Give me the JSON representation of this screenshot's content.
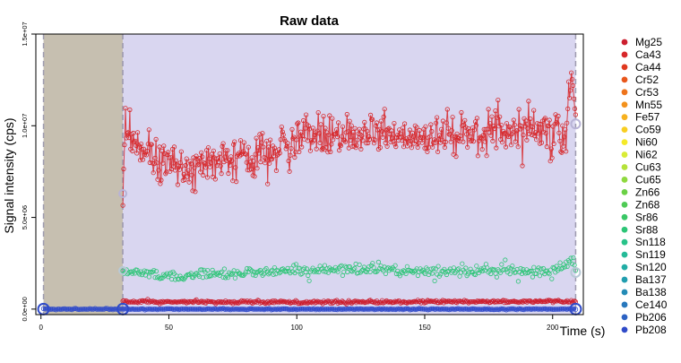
{
  "chart_data": {
    "type": "scatter",
    "title": "Raw data",
    "xlabel": "Time (s)",
    "ylabel": "Signal intensity (cps)",
    "xlim": [
      -2,
      212
    ],
    "ylim": [
      -300000,
      15000000
    ],
    "x_ticks": [
      {
        "value": 0,
        "label": "0"
      },
      {
        "value": 50,
        "label": "50"
      },
      {
        "value": 100,
        "label": "100"
      },
      {
        "value": 150,
        "label": "150"
      },
      {
        "value": 200,
        "label": "200"
      }
    ],
    "y_ticks": [
      {
        "value": 0,
        "label": "0.0e+00"
      },
      {
        "value": 5000000,
        "label": "5.0e+06"
      },
      {
        "value": 10000000,
        "label": "1.0e+07"
      },
      {
        "value": 15000000,
        "label": "1.5e+07"
      }
    ],
    "regions": [
      {
        "kind": "blank",
        "from": 1,
        "to": 32,
        "color": "#c6bfb0"
      },
      {
        "kind": "sample",
        "from": 32,
        "to": 209,
        "color": "#d9d6f0"
      }
    ],
    "legend_position": "right",
    "legend": [
      {
        "name": "Mg25",
        "color": "#cc1f2f"
      },
      {
        "name": "Ca43",
        "color": "#d7272a"
      },
      {
        "name": "Ca44",
        "color": "#e0391f"
      },
      {
        "name": "Cr52",
        "color": "#e8571c"
      },
      {
        "name": "Cr53",
        "color": "#ee741c"
      },
      {
        "name": "Mn55",
        "color": "#f3921d"
      },
      {
        "name": "Fe57",
        "color": "#f7b11f"
      },
      {
        "name": "Co59",
        "color": "#f8ce22"
      },
      {
        "name": "Ni60",
        "color": "#f5ea28"
      },
      {
        "name": "Ni62",
        "color": "#d9ec36"
      },
      {
        "name": "Cu63",
        "color": "#b5e23a"
      },
      {
        "name": "Cu65",
        "color": "#8fd93f"
      },
      {
        "name": "Zn66",
        "color": "#6bd146"
      },
      {
        "name": "Zn68",
        "color": "#4fcb56"
      },
      {
        "name": "Sr86",
        "color": "#3ac766"
      },
      {
        "name": "Sr88",
        "color": "#2dc577"
      },
      {
        "name": "Sn118",
        "color": "#28c389"
      },
      {
        "name": "Sn119",
        "color": "#24bb98"
      },
      {
        "name": "Sn120",
        "color": "#21ada5"
      },
      {
        "name": "Ba137",
        "color": "#219eaf"
      },
      {
        "name": "Ba138",
        "color": "#248bb6"
      },
      {
        "name": "Ce140",
        "color": "#2878bd"
      },
      {
        "name": "Pb206",
        "color": "#2c62c3"
      },
      {
        "name": "Pb208",
        "color": "#304bc9"
      }
    ],
    "series": [
      {
        "name": "Ca43",
        "color": "#d7272a",
        "style": "line+points",
        "x_start": 32,
        "x_end": 209,
        "n_points": 520,
        "baseline_before": 0,
        "knots": [
          {
            "x": 32,
            "y": 6300000
          },
          {
            "x": 33,
            "y": 9800000
          },
          {
            "x": 36,
            "y": 9100000
          },
          {
            "x": 40,
            "y": 8300000
          },
          {
            "x": 50,
            "y": 7900000
          },
          {
            "x": 60,
            "y": 7800000
          },
          {
            "x": 70,
            "y": 7900000
          },
          {
            "x": 80,
            "y": 8100000
          },
          {
            "x": 90,
            "y": 8400000
          },
          {
            "x": 100,
            "y": 9200000
          },
          {
            "x": 110,
            "y": 9400000
          },
          {
            "x": 120,
            "y": 9500000
          },
          {
            "x": 130,
            "y": 9600000
          },
          {
            "x": 140,
            "y": 9500000
          },
          {
            "x": 150,
            "y": 9400000
          },
          {
            "x": 160,
            "y": 9700000
          },
          {
            "x": 170,
            "y": 9600000
          },
          {
            "x": 180,
            "y": 9800000
          },
          {
            "x": 190,
            "y": 9900000
          },
          {
            "x": 200,
            "y": 9800000
          },
          {
            "x": 205,
            "y": 9500000
          },
          {
            "x": 208,
            "y": 12800000
          },
          {
            "x": 209,
            "y": 10100000
          }
        ],
        "spread": 600000
      },
      {
        "name": "Sr88",
        "color": "#2dc577",
        "style": "points",
        "x_start": 32,
        "x_end": 209,
        "n_points": 380,
        "baseline_before": 0,
        "knots": [
          {
            "x": 32,
            "y": 2100000
          },
          {
            "x": 40,
            "y": 1900000
          },
          {
            "x": 50,
            "y": 1800000
          },
          {
            "x": 70,
            "y": 1900000
          },
          {
            "x": 100,
            "y": 2100000
          },
          {
            "x": 120,
            "y": 2200000
          },
          {
            "x": 150,
            "y": 2100000
          },
          {
            "x": 180,
            "y": 2100000
          },
          {
            "x": 200,
            "y": 2050000
          },
          {
            "x": 208,
            "y": 2700000
          },
          {
            "x": 209,
            "y": 2000000
          }
        ],
        "spread": 150000
      },
      {
        "name": "Mg25",
        "color": "#cc1f2f",
        "style": "line+points",
        "x_start": 32,
        "x_end": 209,
        "n_points": 420,
        "baseline_before": 0,
        "knots": [
          {
            "x": 32,
            "y": 400000
          },
          {
            "x": 100,
            "y": 380000
          },
          {
            "x": 209,
            "y": 420000
          }
        ],
        "spread": 40000
      },
      {
        "name": "Pb208",
        "color": "#304bc9",
        "style": "line+points",
        "x_start": 1,
        "x_end": 209,
        "n_points": 300,
        "baseline_before": 0,
        "knots": [
          {
            "x": 1,
            "y": 0
          },
          {
            "x": 209,
            "y": 0
          }
        ],
        "spread": 15000
      }
    ]
  }
}
